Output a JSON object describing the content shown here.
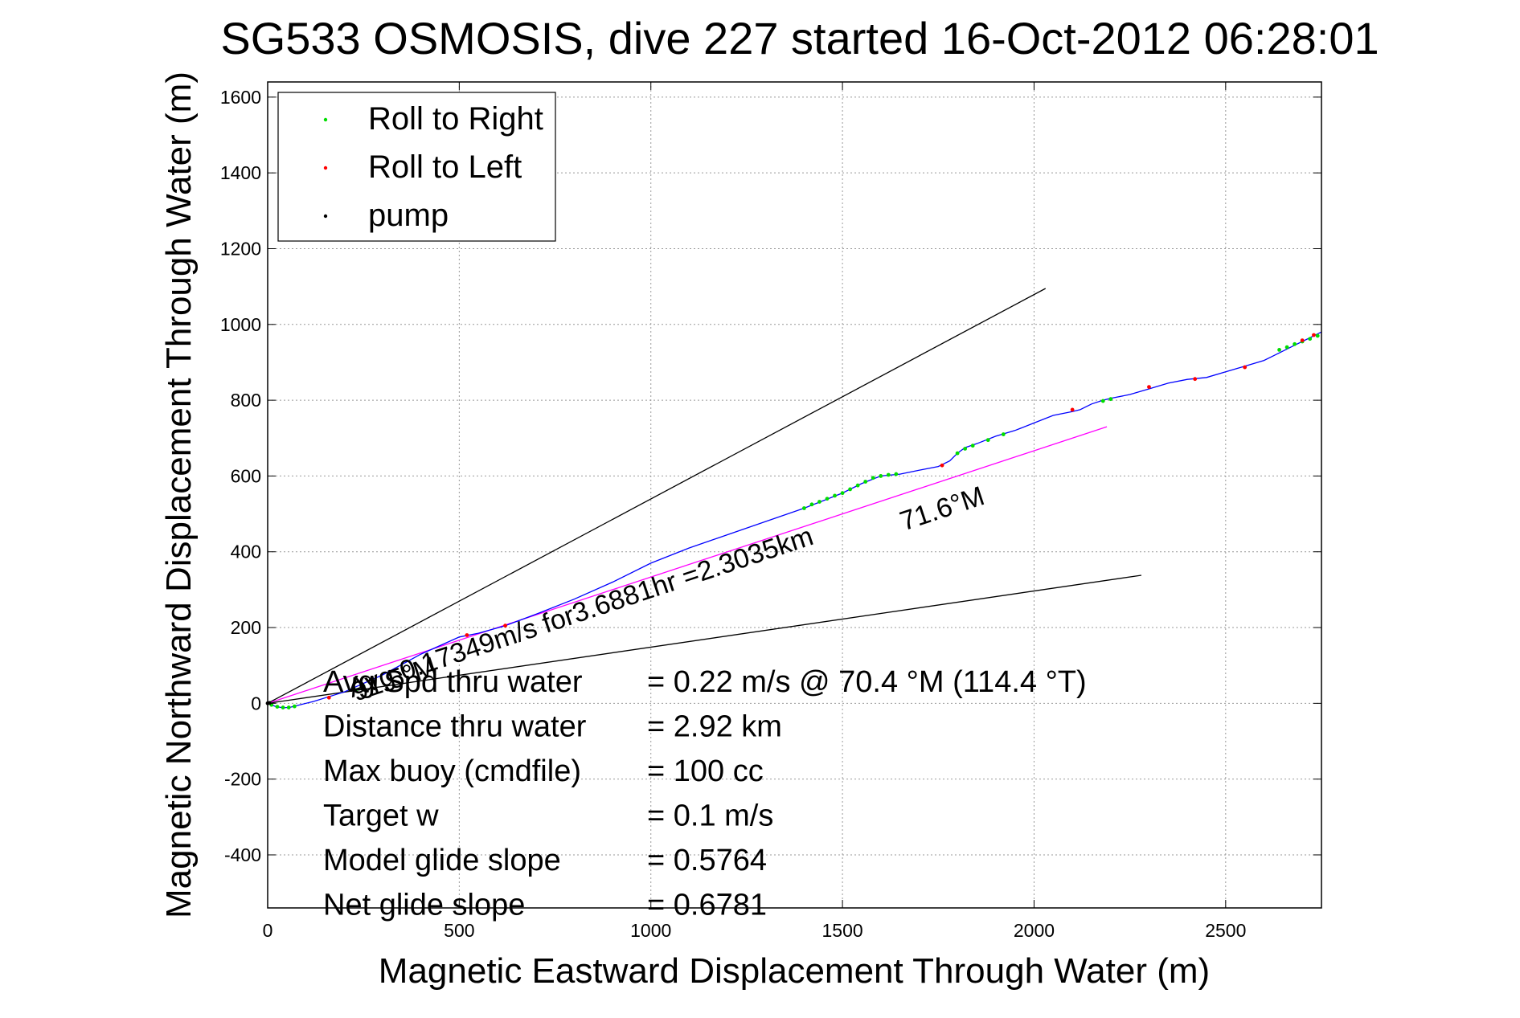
{
  "chart_data": {
    "type": "line",
    "title": "SG533 OSMOSIS, dive 227 started 16-Oct-2012 06:28:01",
    "xlabel": "Magnetic Eastward Displacement Through Water (m)",
    "ylabel": "Magnetic Northward Displacement Through Water (m)",
    "xlim": [
      0,
      2750
    ],
    "ylim": [
      -540,
      1640
    ],
    "xticks": [
      0,
      500,
      1000,
      1500,
      2000,
      2500
    ],
    "yticks": [
      -400,
      -200,
      0,
      200,
      400,
      600,
      800,
      1000,
      1200,
      1400,
      1600
    ],
    "grid": true,
    "legend_position": "top-left",
    "legend": [
      {
        "label": "Roll to Right",
        "color": "#00dd00"
      },
      {
        "label": "Roll to Left",
        "color": "#ff0000"
      },
      {
        "label": "pump",
        "color": "#000000"
      }
    ],
    "series": [
      {
        "color": "#0000ff",
        "x": [
          0,
          20,
          40,
          60,
          80,
          120,
          200,
          300,
          400,
          500,
          550,
          620,
          700,
          800,
          900,
          1000,
          1100,
          1200,
          1300,
          1400,
          1450,
          1500,
          1550,
          1600,
          1650,
          1700,
          1750,
          1780,
          1800,
          1820,
          1850,
          1900,
          1950,
          2000,
          2050,
          2100,
          2120,
          2150,
          2180,
          2200,
          2250,
          2300,
          2350,
          2400,
          2450,
          2500,
          2550,
          2600,
          2620,
          2640,
          2660,
          2680,
          2700,
          2720,
          2750
        ],
        "y": [
          0,
          -8,
          -12,
          -10,
          -5,
          5,
          30,
          75,
          130,
          175,
          185,
          205,
          235,
          275,
          320,
          370,
          410,
          445,
          480,
          515,
          535,
          555,
          580,
          600,
          605,
          615,
          625,
          640,
          660,
          675,
          685,
          705,
          720,
          740,
          760,
          770,
          775,
          790,
          800,
          805,
          815,
          830,
          845,
          855,
          860,
          875,
          890,
          905,
          915,
          925,
          935,
          945,
          955,
          965,
          980
        ]
      }
    ],
    "roll_right_points": {
      "color": "#00dd00",
      "x": [
        10,
        25,
        40,
        55,
        70,
        230,
        250,
        1400,
        1420,
        1440,
        1460,
        1480,
        1500,
        1520,
        1540,
        1560,
        1580,
        1600,
        1620,
        1640,
        1800,
        1820,
        1840,
        1880,
        1920,
        2180,
        2200,
        2640,
        2660,
        2680,
        2700,
        2720,
        2740
      ],
      "y": [
        -4,
        -9,
        -11,
        -11,
        -8,
        35,
        45,
        515,
        525,
        532,
        540,
        548,
        555,
        565,
        575,
        585,
        595,
        600,
        603,
        605,
        660,
        672,
        680,
        695,
        710,
        798,
        803,
        933,
        940,
        948,
        955,
        962,
        970
      ]
    },
    "roll_left_points": {
      "color": "#ff0000",
      "x": [
        160,
        520,
        620,
        1760,
        2100,
        2300,
        2420,
        2550,
        2700,
        2730
      ],
      "y": [
        15,
        180,
        205,
        628,
        775,
        835,
        856,
        887,
        958,
        972
      ]
    },
    "pump_points": {
      "color": "#000000",
      "x": [
        0,
        5
      ],
      "y": [
        0,
        1
      ]
    },
    "reference_lines": [
      {
        "color": "#000000",
        "x": [
          0,
          2030
        ],
        "y": [
          0,
          1095
        ]
      },
      {
        "color": "#000000",
        "x": [
          0,
          2280
        ],
        "y": [
          0,
          338
        ]
      },
      {
        "color": "#ff00ff",
        "x": [
          0,
          2190
        ],
        "y": [
          0,
          730
        ]
      }
    ],
    "annotations": [
      {
        "text": "Avg 0.17349m/s for3.6881hr =2.3035km",
        "x": 220,
        "y": 15,
        "angle": 18.4
      },
      {
        "text": "71.6°M",
        "x": 1660,
        "y": 455,
        "angle": 18.4
      },
      {
        "text": "91.5°M",
        "x": 230,
        "y": 5,
        "angle": 18.4
      }
    ],
    "stats": [
      {
        "label": "Avg Spd thru water",
        "value": "=  0.22 m/s @  70.4 °M (114.4 °T)"
      },
      {
        "label": "Distance thru water",
        "value": "=  2.92 km"
      },
      {
        "label": "Max buoy (cmdfile)",
        "value": "= 100 cc"
      },
      {
        "label": "Target w",
        "value": "= 0.1 m/s"
      },
      {
        "label": "Model glide slope",
        "value": "= 0.5764"
      },
      {
        "label": "Net glide slope",
        "value": "= 0.6781"
      }
    ]
  }
}
